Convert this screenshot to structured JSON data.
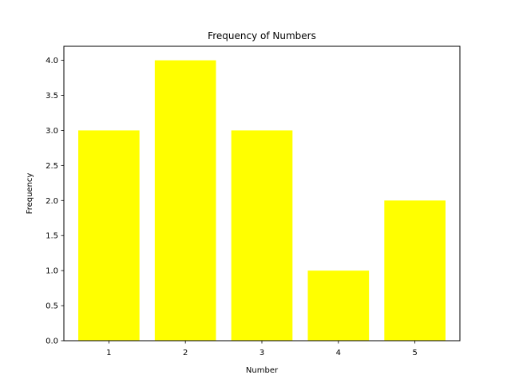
{
  "chart_data": {
    "type": "bar",
    "title": "Frequency of Numbers",
    "xlabel": "Number",
    "ylabel": "Frequency",
    "categories": [
      "1",
      "2",
      "3",
      "4",
      "5"
    ],
    "values": [
      3,
      4,
      3,
      1,
      2
    ],
    "ylim": [
      0,
      4.2
    ],
    "yticks": [
      "0.0",
      "0.5",
      "1.0",
      "1.5",
      "2.0",
      "2.5",
      "3.0",
      "3.5",
      "4.0"
    ],
    "bar_color": "#ffff00",
    "grid": false,
    "legend": "none"
  }
}
